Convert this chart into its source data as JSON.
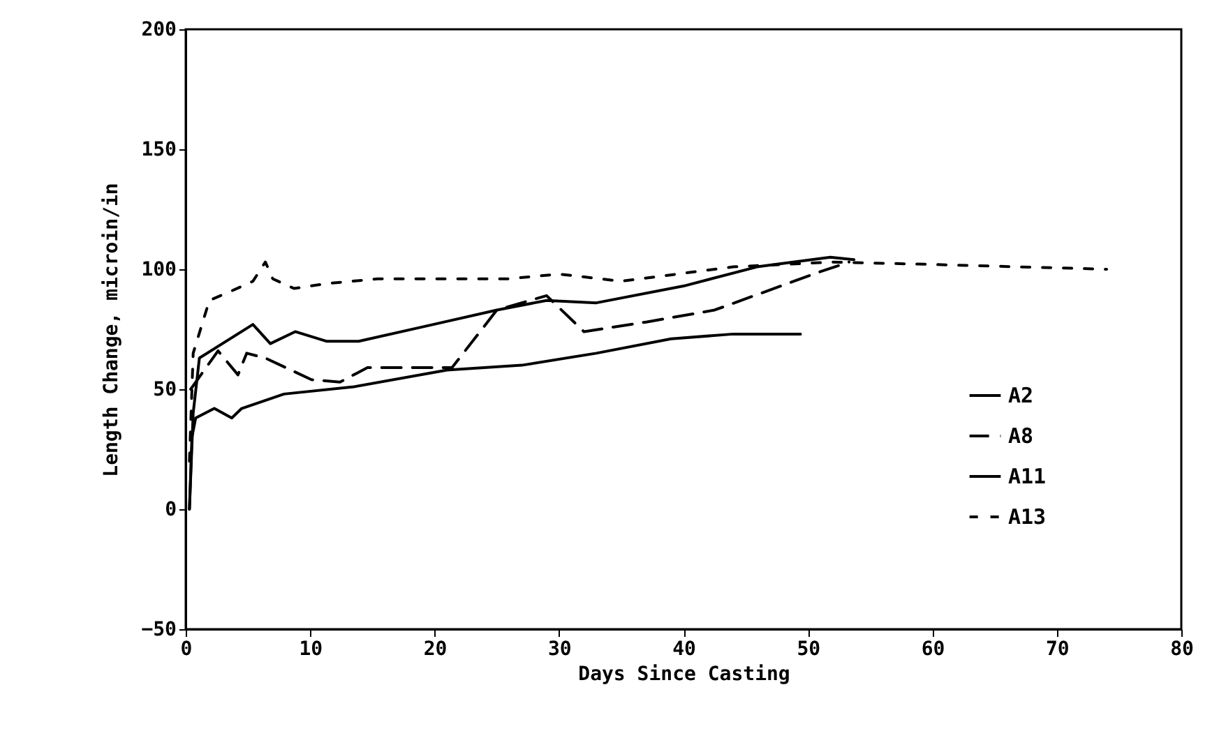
{
  "chart_data": {
    "type": "line",
    "xlabel": "Days Since Casting",
    "ylabel": "Length Change, microin/in",
    "xlim": [
      0,
      80
    ],
    "xticks": [
      0,
      10,
      20,
      30,
      40,
      50,
      60,
      70,
      80
    ],
    "ylim": [
      -50,
      200
    ],
    "yticks": [
      -50,
      0,
      50,
      100,
      150,
      200
    ],
    "grid": false,
    "legend": "right",
    "marker": "none",
    "series": [
      {
        "name": "A2",
        "color": "#000000",
        "line_style": "solid",
        "x": [
          0.3,
          0.5,
          0.8,
          2.3,
          3.7,
          4.5,
          7.9,
          13.5,
          21,
          27,
          33,
          39,
          44,
          49.4
        ],
        "values": [
          0,
          30,
          38,
          42,
          38,
          42,
          48,
          51,
          58,
          60,
          65,
          71,
          73,
          73
        ]
      },
      {
        "name": "A8",
        "color": "#000000",
        "line_style": "dashed",
        "x": [
          0.4,
          2.6,
          4.2,
          4.9,
          6.4,
          10.1,
          12.4,
          14.6,
          21.4,
          25,
          29,
          32,
          37,
          42.5,
          51,
          53.3
        ],
        "values": [
          50,
          66,
          56,
          65,
          63,
          54,
          53,
          59,
          59,
          83,
          89,
          74,
          78,
          83,
          99,
          103
        ]
      },
      {
        "name": "A11",
        "color": "#000000",
        "line_style": "solid",
        "x": [
          0.3,
          0.6,
          1.1,
          5.4,
          6.8,
          8.8,
          11.3,
          13.9,
          19.9,
          25,
          29,
          33,
          40,
          45.9,
          51.8,
          53.7
        ],
        "values": [
          0,
          40,
          63,
          77,
          69,
          74,
          70,
          70,
          77,
          83,
          87,
          86,
          93,
          101,
          105,
          104
        ]
      },
      {
        "name": "A13",
        "color": "#000000",
        "line_style": "dotted",
        "x": [
          0.3,
          0.6,
          1.9,
          3.7,
          5.4,
          6.4,
          7,
          8.7,
          11.3,
          15.4,
          25.9,
          30,
          35,
          44,
          52,
          60,
          74
        ],
        "values": [
          20,
          65,
          87,
          91,
          95,
          103,
          96,
          92,
          94,
          96,
          96,
          98,
          95,
          101,
          103,
          102,
          100
        ]
      }
    ]
  }
}
